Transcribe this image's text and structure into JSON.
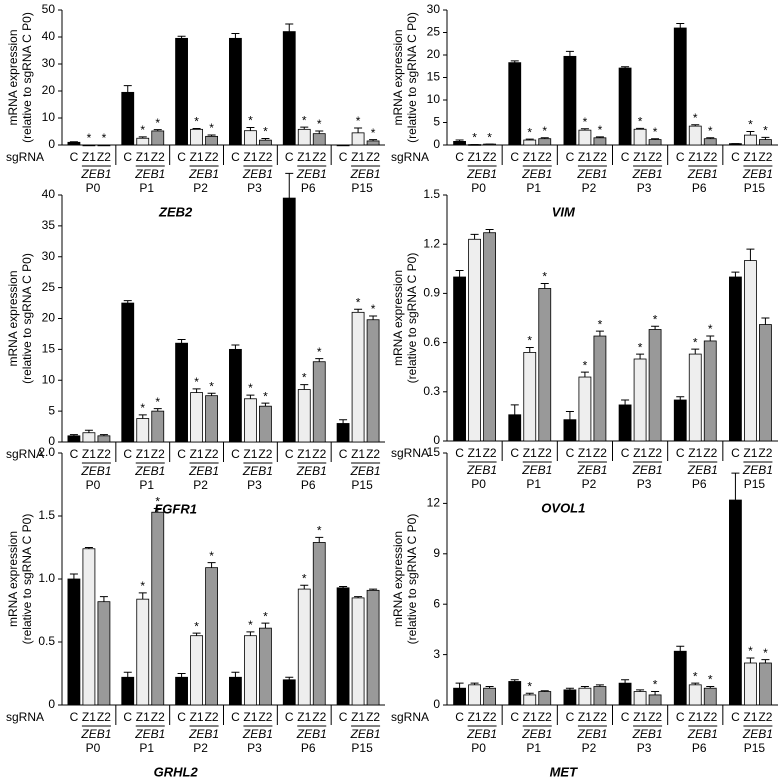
{
  "chart_data": [
    {
      "type": "bar",
      "title": "ZEB2",
      "ylabel": [
        "mRNA expression",
        "(relative to sgRNA C P0)"
      ],
      "row_label": "sgRNA",
      "group_label": "ZEB1",
      "star": "*",
      "categories": [
        "P0",
        "P1",
        "P2",
        "P3",
        "P6",
        "P15"
      ],
      "series": [
        {
          "name": "C",
          "color": "#000000",
          "values": [
            1,
            19.5,
            39.5,
            39.5,
            42,
            0
          ],
          "errors": [
            0.2,
            2.5,
            0.8,
            1.8,
            2.8,
            0
          ],
          "stars": [
            false,
            false,
            false,
            false,
            false,
            false
          ]
        },
        {
          "name": "Z1",
          "color": "#eeeeee",
          "values": [
            0,
            2.5,
            5.8,
            5.3,
            5.8,
            4.5
          ],
          "errors": [
            0,
            0.5,
            0.3,
            1.2,
            0.8,
            1.8
          ],
          "stars": [
            true,
            true,
            true,
            true,
            true,
            true
          ]
        },
        {
          "name": "Z2",
          "color": "#999999",
          "values": [
            0,
            5.2,
            3.2,
            1.8,
            4.2,
            1.5
          ],
          "errors": [
            0,
            0.5,
            0.5,
            0.6,
            1,
            0.5
          ],
          "stars": [
            true,
            true,
            true,
            true,
            true,
            true
          ]
        }
      ],
      "ylim": [
        0,
        50
      ],
      "yticks": [
        0,
        10,
        20,
        30,
        40,
        50
      ]
    },
    {
      "type": "bar",
      "title": "VIM",
      "ylabel": [
        "mRNA expression",
        "(relative to sgRNA C P0)"
      ],
      "row_label": "sgRNA",
      "group_label": "ZEB1",
      "star": "*",
      "categories": [
        "P0",
        "P1",
        "P2",
        "P3",
        "P6",
        "P15"
      ],
      "series": [
        {
          "name": "C",
          "color": "#000000",
          "values": [
            0.8,
            18.3,
            19.7,
            17.1,
            26,
            0.3
          ],
          "errors": [
            0.3,
            0.4,
            1.1,
            0.3,
            1,
            0
          ],
          "stars": [
            false,
            false,
            false,
            false,
            false,
            false
          ]
        },
        {
          "name": "Z1",
          "color": "#eeeeee",
          "values": [
            0.1,
            1.1,
            3.3,
            3.5,
            4.2,
            2.2
          ],
          "errors": [
            0,
            0.2,
            0.3,
            0.2,
            0.3,
            0.8
          ],
          "stars": [
            true,
            true,
            true,
            true,
            true,
            true
          ]
        },
        {
          "name": "Z2",
          "color": "#999999",
          "values": [
            0.2,
            1.4,
            1.6,
            1.2,
            1.4,
            1.2
          ],
          "errors": [
            0,
            0.2,
            0.2,
            0.2,
            0.2,
            0.5
          ],
          "stars": [
            true,
            true,
            true,
            true,
            true,
            true
          ]
        }
      ],
      "ylim": [
        0,
        30
      ],
      "yticks": [
        0,
        5,
        10,
        15,
        20,
        25,
        30
      ]
    },
    {
      "type": "bar",
      "title": "FGFR1",
      "ylabel": [
        "mRNA expression",
        "(relative to sgRNA C P0)"
      ],
      "row_label": "sgRNA",
      "group_label": "ZEB1",
      "star": "*",
      "categories": [
        "P0",
        "P1",
        "P2",
        "P3",
        "P6",
        "P15"
      ],
      "series": [
        {
          "name": "C",
          "color": "#000000",
          "values": [
            1,
            22.5,
            16,
            15,
            39.5,
            3
          ],
          "errors": [
            0.2,
            0.4,
            0.6,
            0.7,
            4,
            0.6
          ],
          "stars": [
            false,
            false,
            false,
            false,
            false,
            false
          ]
        },
        {
          "name": "Z1",
          "color": "#eeeeee",
          "values": [
            1.5,
            3.8,
            8,
            7,
            8.5,
            21
          ],
          "errors": [
            0.4,
            0.6,
            0.6,
            0.6,
            0.8,
            0.5
          ],
          "stars": [
            false,
            true,
            true,
            true,
            true,
            true
          ]
        },
        {
          "name": "Z2",
          "color": "#999999",
          "values": [
            1,
            5,
            7.5,
            5.8,
            13,
            19.8
          ],
          "errors": [
            0.2,
            0.4,
            0.4,
            0.5,
            0.5,
            0.6
          ],
          "stars": [
            false,
            true,
            true,
            true,
            true,
            true
          ]
        }
      ],
      "ylim": [
        0,
        40
      ],
      "yticks": [
        0,
        5,
        10,
        15,
        20,
        25,
        30,
        35,
        40
      ]
    },
    {
      "type": "bar",
      "title": "OVOL1",
      "ylabel": [
        "mRNA expression",
        "(relative to sgRNA C P0)"
      ],
      "row_label": "sgRNA",
      "group_label": "ZEB1",
      "star": "*",
      "categories": [
        "P0",
        "P1",
        "P2",
        "P3",
        "P6",
        "P15"
      ],
      "series": [
        {
          "name": "C",
          "color": "#000000",
          "values": [
            1.0,
            0.16,
            0.13,
            0.22,
            0.25,
            1.0
          ],
          "errors": [
            0.04,
            0.06,
            0.05,
            0.03,
            0.02,
            0.03
          ],
          "stars": [
            false,
            false,
            false,
            false,
            false,
            false
          ]
        },
        {
          "name": "Z1",
          "color": "#eeeeee",
          "values": [
            1.23,
            0.54,
            0.39,
            0.5,
            0.53,
            1.1
          ],
          "errors": [
            0.03,
            0.03,
            0.03,
            0.03,
            0.03,
            0.07
          ],
          "stars": [
            false,
            true,
            true,
            true,
            true,
            false
          ]
        },
        {
          "name": "Z2",
          "color": "#999999",
          "values": [
            1.27,
            0.93,
            0.64,
            0.68,
            0.61,
            0.71
          ],
          "errors": [
            0.02,
            0.03,
            0.03,
            0.02,
            0.03,
            0.04
          ],
          "stars": [
            false,
            true,
            true,
            true,
            true,
            false
          ]
        }
      ],
      "ylim": [
        0,
        1.5
      ],
      "yticks": [
        0,
        0.3,
        0.6,
        0.9,
        1.2,
        1.5
      ]
    },
    {
      "type": "bar",
      "title": "GRHL2",
      "ylabel": [
        "mRNA expression",
        "(relative to sgRNA C P0)"
      ],
      "row_label": "sgRNA",
      "group_label": "ZEB1",
      "star": "*",
      "categories": [
        "P0",
        "P1",
        "P2",
        "P3",
        "P6",
        "P15"
      ],
      "series": [
        {
          "name": "C",
          "color": "#000000",
          "values": [
            1.0,
            0.22,
            0.22,
            0.22,
            0.2,
            0.93
          ],
          "errors": [
            0.04,
            0.04,
            0.03,
            0.04,
            0.02,
            0.01
          ],
          "stars": [
            false,
            false,
            false,
            false,
            false,
            false
          ]
        },
        {
          "name": "Z1",
          "color": "#eeeeee",
          "values": [
            1.24,
            0.84,
            0.55,
            0.55,
            0.92,
            0.85
          ],
          "errors": [
            0.01,
            0.05,
            0.02,
            0.03,
            0.03,
            0.01
          ],
          "stars": [
            false,
            true,
            true,
            true,
            true,
            false
          ]
        },
        {
          "name": "Z2",
          "color": "#999999",
          "values": [
            0.82,
            1.53,
            1.09,
            0.61,
            1.29,
            0.91
          ],
          "errors": [
            0.04,
            0.03,
            0.04,
            0.04,
            0.04,
            0.01
          ],
          "stars": [
            false,
            true,
            true,
            true,
            true,
            false
          ]
        }
      ],
      "ylim": [
        0,
        2
      ],
      "yticks": [
        0,
        0.5,
        {
          "value": 1,
          "label": "1.0"
        },
        1.5,
        {
          "value": 2,
          "label": "2.0"
        }
      ]
    },
    {
      "type": "bar",
      "title": "MET",
      "ylabel": [
        "mRNA expression",
        "(relative to sgRNA C P0)"
      ],
      "row_label": "sgRNA",
      "group_label": "ZEB1",
      "star": "*",
      "categories": [
        "P0",
        "P1",
        "P2",
        "P3",
        "P6",
        "P15"
      ],
      "series": [
        {
          "name": "C",
          "color": "#000000",
          "values": [
            1.0,
            1.4,
            0.9,
            1.3,
            3.2,
            12.2
          ],
          "errors": [
            0.3,
            0.1,
            0.1,
            0.2,
            0.3,
            1.6
          ],
          "stars": [
            false,
            false,
            false,
            false,
            false,
            false
          ]
        },
        {
          "name": "Z1",
          "color": "#eeeeee",
          "values": [
            1.2,
            0.6,
            1.0,
            0.8,
            1.2,
            2.5
          ],
          "errors": [
            0.1,
            0.1,
            0.1,
            0.1,
            0.1,
            0.3
          ],
          "stars": [
            false,
            true,
            false,
            false,
            true,
            true
          ]
        },
        {
          "name": "Z2",
          "color": "#999999",
          "values": [
            1.0,
            0.8,
            1.1,
            0.6,
            1.0,
            2.5
          ],
          "errors": [
            0.1,
            0.05,
            0.1,
            0.2,
            0.1,
            0.2
          ],
          "stars": [
            false,
            false,
            false,
            true,
            true,
            true
          ]
        }
      ],
      "ylim": [
        0,
        15
      ],
      "yticks": [
        0,
        3,
        6,
        9,
        12,
        15
      ]
    }
  ]
}
